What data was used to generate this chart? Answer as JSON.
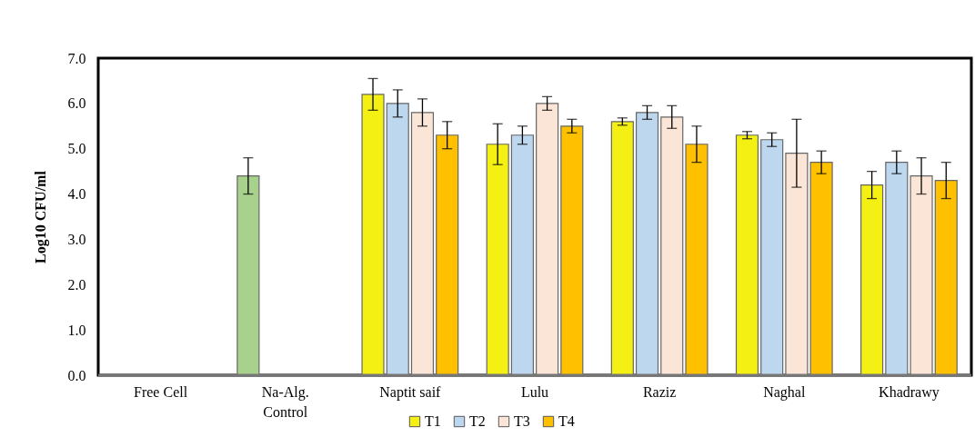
{
  "chart_data": {
    "type": "bar",
    "ylabel": "Log10 CFU/ml",
    "categories": [
      "Free Cell",
      "Na-Alg. Control",
      "Naptit saif",
      "Lulu",
      "Raziz",
      "Naghal",
      "Khadrawy"
    ],
    "series": [
      {
        "name": "T1",
        "color": "#f5f014",
        "colors": [
          "#f5f014",
          "#a9d18e",
          "#f5f014",
          "#f5f014",
          "#f5f014",
          "#f5f014",
          "#f5f014"
        ],
        "values": [
          null,
          4.4,
          6.2,
          5.1,
          5.6,
          5.3,
          4.2
        ],
        "errors": [
          null,
          0.4,
          0.35,
          0.45,
          0.08,
          0.08,
          0.3
        ]
      },
      {
        "name": "T2",
        "color": "#bdd7ee",
        "values": [
          null,
          null,
          6.0,
          5.3,
          5.8,
          5.2,
          4.7
        ],
        "errors": [
          null,
          null,
          0.3,
          0.2,
          0.15,
          0.15,
          0.25
        ]
      },
      {
        "name": "T3",
        "color": "#fbe5d6",
        "values": [
          null,
          null,
          5.8,
          6.0,
          5.7,
          4.9,
          4.4
        ],
        "errors": [
          null,
          null,
          0.3,
          0.15,
          0.25,
          0.75,
          0.4
        ]
      },
      {
        "name": "T4",
        "color": "#ffc000",
        "values": [
          null,
          null,
          5.3,
          5.5,
          5.1,
          4.7,
          4.3
        ],
        "errors": [
          null,
          null,
          0.3,
          0.15,
          0.4,
          0.25,
          0.4
        ]
      }
    ],
    "ylim": [
      0,
      7
    ],
    "yticks": [
      {
        "value": 0,
        "label": "0.0"
      },
      {
        "value": 1,
        "label": "1.0"
      },
      {
        "value": 2,
        "label": "2.0"
      },
      {
        "value": 3,
        "label": "3.0"
      },
      {
        "value": 4,
        "label": "4.0"
      },
      {
        "value": 5,
        "label": "5.0"
      },
      {
        "value": 6,
        "label": "6.0"
      },
      {
        "value": 7,
        "label": "7.0"
      }
    ],
    "grid": false,
    "legend": "bottom"
  }
}
